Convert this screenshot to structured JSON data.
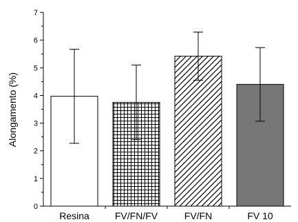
{
  "chart_data": {
    "type": "bar",
    "title": "",
    "xlabel": "",
    "ylabel": "Alongamento (%)",
    "ylim": [
      0,
      7
    ],
    "yticks": [
      0,
      1,
      2,
      3,
      4,
      5,
      6,
      7
    ],
    "grid": false,
    "legend": "none",
    "categories": [
      "Resina",
      "FV/FN/FV",
      "FV/FN",
      "FV 10"
    ],
    "values": [
      3.97,
      3.75,
      5.42,
      4.4
    ],
    "error": [
      1.7,
      1.35,
      0.87,
      1.33
    ],
    "fills": [
      "empty",
      "grid-hatch",
      "diagonal-hatch",
      "solid"
    ],
    "colors": {
      "solid_fill": "#777777",
      "stroke": "#000000"
    }
  }
}
